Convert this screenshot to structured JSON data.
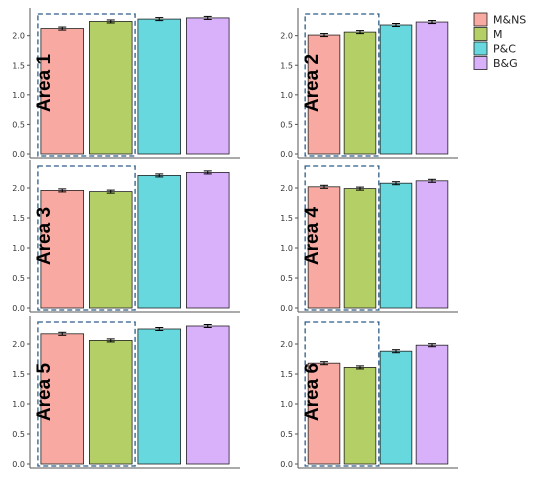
{
  "chart_data": {
    "type": "bar",
    "layout": "small-multiples",
    "categories": [
      "M&NS",
      "M",
      "P&C",
      "B&G"
    ],
    "colors": [
      "#F8A9A1",
      "#B3CF66",
      "#67D9DE",
      "#D9B0FA"
    ],
    "ylim": [
      0,
      2.4
    ],
    "yticks": [
      "0.0",
      "0.5",
      "1.0",
      "1.5",
      "2.0"
    ],
    "legend_position": "top-right",
    "highlight": "dashed box around the first two bars (M&NS, M) in each panel",
    "panels": [
      {
        "label": "Area 1",
        "values": [
          2.12,
          2.24,
          2.28,
          2.3
        ]
      },
      {
        "label": "Area 2",
        "values": [
          2.01,
          2.06,
          2.18,
          2.23
        ]
      },
      {
        "label": "Area 3",
        "values": [
          1.96,
          1.94,
          2.21,
          2.26
        ]
      },
      {
        "label": "Area 4",
        "values": [
          2.02,
          1.99,
          2.08,
          2.12
        ]
      },
      {
        "label": "Area 5",
        "values": [
          2.17,
          2.06,
          2.25,
          2.3
        ]
      },
      {
        "label": "Area 6",
        "values": [
          1.68,
          1.61,
          1.88,
          1.98
        ]
      }
    ],
    "xlabel": "",
    "ylabel": ""
  }
}
